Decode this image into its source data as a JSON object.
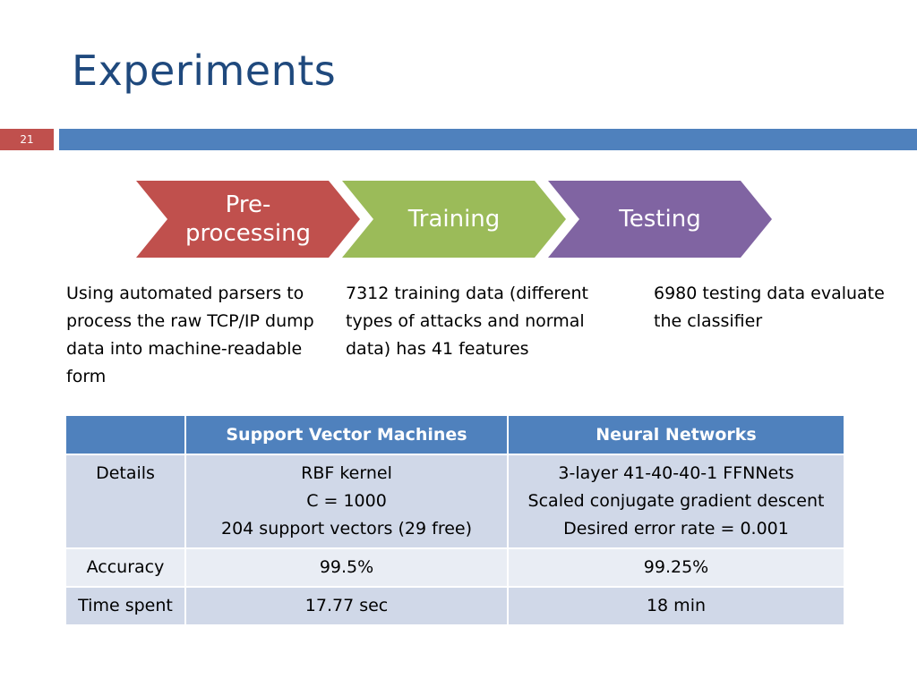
{
  "slide": {
    "title": "Experiments",
    "number": "21"
  },
  "process": {
    "steps": [
      {
        "label_line1": "Pre-",
        "label_line2": "processing",
        "color": "#c0504d"
      },
      {
        "label_line1": "Training",
        "label_line2": "",
        "color": "#9bbb59"
      },
      {
        "label_line1": "Testing",
        "label_line2": "",
        "color": "#8064a2"
      }
    ]
  },
  "descriptions": [
    "Using automated parsers to process the raw TCP/IP dump data into machine-readable form",
    "7312 training data (different types of attacks and normal data) has 41 features",
    "6980 testing data evaluate the classifier"
  ],
  "table": {
    "headers": [
      "",
      "Support Vector Machines",
      "Neural Networks"
    ],
    "rows": [
      {
        "label": "Details",
        "svm": [
          "RBF kernel",
          "C = 1000",
          "204 support vectors (29 free)"
        ],
        "nn": [
          "3-layer 41-40-40-1 FFNNets",
          "Scaled conjugate gradient descent",
          "Desired error rate = 0.001"
        ]
      },
      {
        "label": "Accuracy",
        "svm": [
          "99.5%"
        ],
        "nn": [
          "99.25%"
        ]
      },
      {
        "label": "Time spent",
        "svm": [
          "17.77 sec"
        ],
        "nn": [
          "18 min"
        ]
      }
    ]
  },
  "colors": {
    "title": "#1f497d",
    "accent_bar": "#4f81bd",
    "number_box": "#c0504d",
    "table_header": "#4f81bd",
    "table_row_dark": "#d0d8e8",
    "table_row_light": "#e9edf4"
  }
}
